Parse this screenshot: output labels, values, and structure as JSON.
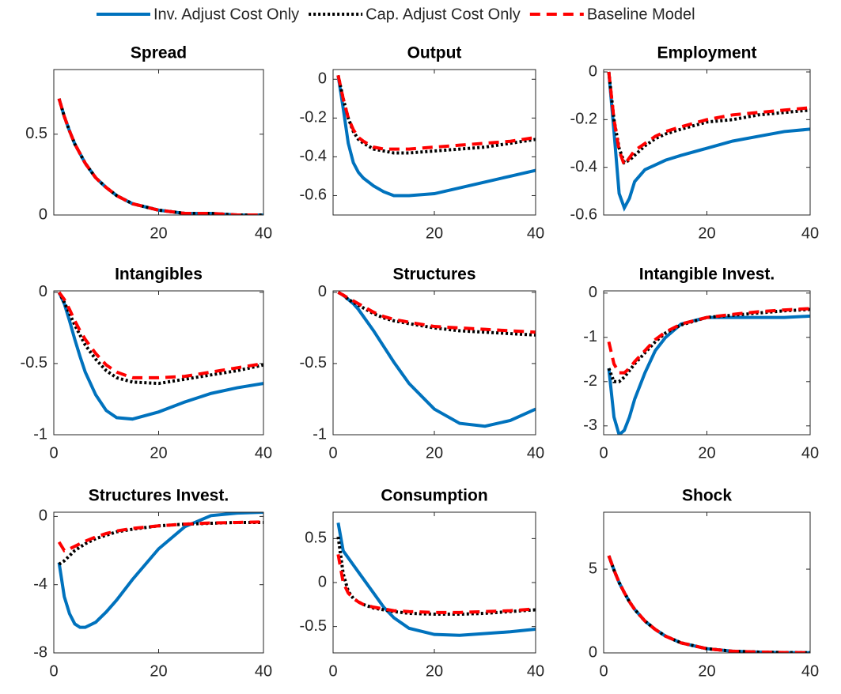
{
  "chart_data": [
    {
      "type": "line",
      "title": "Spread",
      "x": [
        1,
        2,
        3,
        4,
        5,
        6,
        8,
        10,
        12,
        15,
        20,
        25,
        30,
        35,
        40
      ],
      "xlim": [
        0,
        40
      ],
      "xticks": [
        20,
        40
      ],
      "ylim": [
        0,
        0.9
      ],
      "yticks": [
        0,
        0.5
      ],
      "series": [
        {
          "name": "Inv. Adjust Cost Only",
          "color": "#0072bd",
          "style": "solid",
          "values": [
            0.72,
            0.61,
            0.52,
            0.44,
            0.38,
            0.32,
            0.23,
            0.17,
            0.12,
            0.07,
            0.03,
            0.01,
            0.01,
            0,
            0
          ]
        },
        {
          "name": "Cap. Adjust Cost Only",
          "color": "#000000",
          "style": "dotted",
          "values": [
            0.72,
            0.61,
            0.52,
            0.44,
            0.38,
            0.32,
            0.23,
            0.17,
            0.12,
            0.07,
            0.03,
            0.01,
            0.01,
            0,
            0
          ]
        },
        {
          "name": "Baseline Model",
          "color": "#ff0000",
          "style": "dashed",
          "values": [
            0.72,
            0.61,
            0.52,
            0.44,
            0.38,
            0.32,
            0.23,
            0.17,
            0.12,
            0.07,
            0.03,
            0.01,
            0.01,
            0,
            0
          ]
        }
      ]
    },
    {
      "type": "line",
      "title": "Output",
      "x": [
        1,
        2,
        3,
        4,
        5,
        6,
        8,
        10,
        12,
        15,
        20,
        25,
        30,
        35,
        40
      ],
      "xlim": [
        0,
        40
      ],
      "xticks": [
        20,
        40
      ],
      "ylim": [
        -0.7,
        0.05
      ],
      "yticks": [
        -0.6,
        -0.4,
        -0.2,
        0
      ],
      "series": [
        {
          "name": "Inv. Adjust Cost Only",
          "color": "#0072bd",
          "style": "solid",
          "values": [
            0.02,
            -0.15,
            -0.33,
            -0.43,
            -0.48,
            -0.51,
            -0.55,
            -0.58,
            -0.6,
            -0.6,
            -0.59,
            -0.56,
            -0.53,
            -0.5,
            -0.47
          ]
        },
        {
          "name": "Cap. Adjust Cost Only",
          "color": "#000000",
          "style": "dotted",
          "values": [
            0.02,
            -0.1,
            -0.2,
            -0.27,
            -0.31,
            -0.33,
            -0.36,
            -0.37,
            -0.38,
            -0.38,
            -0.37,
            -0.36,
            -0.35,
            -0.33,
            -0.31
          ]
        },
        {
          "name": "Baseline Model",
          "color": "#ff0000",
          "style": "dashed",
          "values": [
            0.02,
            -0.1,
            -0.2,
            -0.26,
            -0.3,
            -0.32,
            -0.35,
            -0.36,
            -0.36,
            -0.36,
            -0.35,
            -0.34,
            -0.33,
            -0.32,
            -0.3
          ]
        }
      ]
    },
    {
      "type": "line",
      "title": "Employment",
      "x": [
        1,
        2,
        3,
        4,
        5,
        6,
        8,
        10,
        12,
        15,
        20,
        25,
        30,
        35,
        40
      ],
      "xlim": [
        0,
        40
      ],
      "xticks": [
        20,
        40
      ],
      "ylim": [
        -0.6,
        0.01
      ],
      "yticks": [
        -0.6,
        -0.4,
        -0.2,
        0
      ],
      "series": [
        {
          "name": "Inv. Adjust Cost Only",
          "color": "#0072bd",
          "style": "solid",
          "values": [
            0,
            -0.25,
            -0.51,
            -0.57,
            -0.53,
            -0.46,
            -0.41,
            -0.39,
            -0.37,
            -0.35,
            -0.32,
            -0.29,
            -0.27,
            -0.25,
            -0.24
          ]
        },
        {
          "name": "Cap. Adjust Cost Only",
          "color": "#000000",
          "style": "dotted",
          "values": [
            0,
            -0.2,
            -0.32,
            -0.38,
            -0.37,
            -0.35,
            -0.31,
            -0.28,
            -0.26,
            -0.24,
            -0.21,
            -0.2,
            -0.18,
            -0.17,
            -0.16
          ]
        },
        {
          "name": "Baseline Model",
          "color": "#ff0000",
          "style": "dashed",
          "values": [
            0,
            -0.2,
            -0.33,
            -0.39,
            -0.36,
            -0.33,
            -0.3,
            -0.27,
            -0.25,
            -0.23,
            -0.2,
            -0.18,
            -0.17,
            -0.16,
            -0.15
          ]
        }
      ]
    },
    {
      "type": "line",
      "title": "Intangibles",
      "x": [
        1,
        2,
        3,
        4,
        5,
        6,
        8,
        10,
        12,
        15,
        20,
        25,
        30,
        35,
        40
      ],
      "xlim": [
        0,
        40
      ],
      "xticks": [
        0,
        20,
        40
      ],
      "ylim": [
        -1,
        0.01
      ],
      "yticks": [
        -1,
        -0.5,
        0
      ],
      "series": [
        {
          "name": "Inv. Adjust Cost Only",
          "color": "#0072bd",
          "style": "solid",
          "values": [
            0,
            -0.08,
            -0.2,
            -0.33,
            -0.45,
            -0.56,
            -0.72,
            -0.83,
            -0.88,
            -0.89,
            -0.84,
            -0.77,
            -0.71,
            -0.67,
            -0.64
          ]
        },
        {
          "name": "Cap. Adjust Cost Only",
          "color": "#000000",
          "style": "dotted",
          "values": [
            0,
            -0.07,
            -0.15,
            -0.23,
            -0.3,
            -0.37,
            -0.47,
            -0.55,
            -0.6,
            -0.63,
            -0.64,
            -0.61,
            -0.58,
            -0.55,
            -0.51
          ]
        },
        {
          "name": "Baseline Model",
          "color": "#ff0000",
          "style": "dashed",
          "values": [
            0,
            -0.05,
            -0.12,
            -0.2,
            -0.27,
            -0.33,
            -0.43,
            -0.51,
            -0.56,
            -0.6,
            -0.6,
            -0.59,
            -0.56,
            -0.53,
            -0.5
          ]
        }
      ]
    },
    {
      "type": "line",
      "title": "Structures",
      "x": [
        1,
        2,
        3,
        4,
        5,
        6,
        8,
        10,
        12,
        15,
        20,
        25,
        30,
        35,
        40
      ],
      "xlim": [
        0,
        40
      ],
      "xticks": [
        0,
        20,
        40
      ],
      "ylim": [
        -1,
        0.01
      ],
      "yticks": [
        -1,
        -0.5,
        0
      ],
      "series": [
        {
          "name": "Inv. Adjust Cost Only",
          "color": "#0072bd",
          "style": "solid",
          "values": [
            0,
            -0.02,
            -0.05,
            -0.08,
            -0.12,
            -0.17,
            -0.27,
            -0.38,
            -0.49,
            -0.64,
            -0.82,
            -0.92,
            -0.94,
            -0.9,
            -0.82
          ]
        },
        {
          "name": "Cap. Adjust Cost Only",
          "color": "#000000",
          "style": "dotted",
          "values": [
            0,
            -0.02,
            -0.05,
            -0.07,
            -0.09,
            -0.11,
            -0.15,
            -0.18,
            -0.2,
            -0.22,
            -0.25,
            -0.27,
            -0.28,
            -0.29,
            -0.3
          ]
        },
        {
          "name": "Baseline Model",
          "color": "#ff0000",
          "style": "dashed",
          "values": [
            0,
            -0.02,
            -0.04,
            -0.06,
            -0.08,
            -0.1,
            -0.14,
            -0.17,
            -0.19,
            -0.21,
            -0.24,
            -0.25,
            -0.26,
            -0.27,
            -0.28
          ]
        }
      ]
    },
    {
      "type": "line",
      "title": "Intangible Invest.",
      "x": [
        1,
        2,
        3,
        4,
        5,
        6,
        8,
        10,
        12,
        15,
        20,
        25,
        30,
        35,
        40
      ],
      "xlim": [
        0,
        40
      ],
      "xticks": [
        0,
        20,
        40
      ],
      "ylim": [
        -3.2,
        0.05
      ],
      "yticks": [
        -3,
        -2,
        -1,
        0
      ],
      "series": [
        {
          "name": "Inv. Adjust Cost Only",
          "color": "#0072bd",
          "style": "solid",
          "values": [
            -1.7,
            -2.8,
            -3.2,
            -3.1,
            -2.8,
            -2.4,
            -1.8,
            -1.3,
            -1,
            -0.7,
            -0.55,
            -0.55,
            -0.55,
            -0.55,
            -0.52
          ]
        },
        {
          "name": "Cap. Adjust Cost Only",
          "color": "#000000",
          "style": "dotted",
          "values": [
            -1.7,
            -2,
            -2,
            -1.9,
            -1.75,
            -1.6,
            -1.35,
            -1.1,
            -0.9,
            -0.72,
            -0.55,
            -0.5,
            -0.45,
            -0.4,
            -0.37
          ]
        },
        {
          "name": "Baseline Model",
          "color": "#ff0000",
          "style": "dashed",
          "values": [
            -1.1,
            -1.6,
            -1.8,
            -1.8,
            -1.7,
            -1.55,
            -1.3,
            -1.05,
            -0.88,
            -0.7,
            -0.55,
            -0.48,
            -0.42,
            -0.38,
            -0.35
          ]
        }
      ]
    },
    {
      "type": "line",
      "title": "Structures Invest.",
      "x": [
        1,
        2,
        3,
        4,
        5,
        6,
        8,
        10,
        12,
        15,
        20,
        25,
        30,
        35,
        40
      ],
      "xlim": [
        0,
        40
      ],
      "xticks": [
        0,
        20,
        40
      ],
      "ylim": [
        -8,
        0.25
      ],
      "yticks": [
        -8,
        -4,
        0
      ],
      "series": [
        {
          "name": "Inv. Adjust Cost Only",
          "color": "#0072bd",
          "style": "solid",
          "values": [
            -2.7,
            -4.7,
            -5.7,
            -6.3,
            -6.5,
            -6.5,
            -6.2,
            -5.6,
            -4.9,
            -3.7,
            -1.9,
            -0.6,
            0.05,
            0.2,
            0.25
          ]
        },
        {
          "name": "Cap. Adjust Cost Only",
          "color": "#000000",
          "style": "dotted",
          "values": [
            -2.8,
            -2.6,
            -2.3,
            -2,
            -1.8,
            -1.6,
            -1.3,
            -1.1,
            -0.9,
            -0.75,
            -0.55,
            -0.45,
            -0.4,
            -0.35,
            -0.35
          ]
        },
        {
          "name": "Baseline Model",
          "color": "#ff0000",
          "style": "dashed",
          "values": [
            -1.5,
            -2,
            -1.9,
            -1.75,
            -1.6,
            -1.45,
            -1.2,
            -1,
            -0.85,
            -0.7,
            -0.55,
            -0.45,
            -0.38,
            -0.35,
            -0.32
          ]
        }
      ]
    },
    {
      "type": "line",
      "title": "Consumption",
      "x": [
        1,
        2,
        3,
        4,
        5,
        6,
        8,
        10,
        12,
        15,
        20,
        25,
        30,
        35,
        40
      ],
      "xlim": [
        0,
        40
      ],
      "xticks": [
        0,
        20,
        40
      ],
      "ylim": [
        -0.8,
        0.8
      ],
      "yticks": [
        -0.5,
        0,
        0.5
      ],
      "series": [
        {
          "name": "Inv. Adjust Cost Only",
          "color": "#0072bd",
          "style": "solid",
          "values": [
            0.68,
            0.36,
            0.28,
            0.2,
            0.12,
            0.04,
            -0.12,
            -0.28,
            -0.4,
            -0.52,
            -0.59,
            -0.6,
            -0.58,
            -0.56,
            -0.53
          ]
        },
        {
          "name": "Cap. Adjust Cost Only",
          "color": "#000000",
          "style": "dotted",
          "values": [
            0.52,
            0.1,
            -0.1,
            -0.18,
            -0.22,
            -0.25,
            -0.29,
            -0.31,
            -0.33,
            -0.35,
            -0.36,
            -0.36,
            -0.35,
            -0.33,
            -0.31
          ]
        },
        {
          "name": "Baseline Model",
          "color": "#ff0000",
          "style": "dashed",
          "values": [
            0.32,
            0,
            -0.12,
            -0.18,
            -0.22,
            -0.25,
            -0.28,
            -0.3,
            -0.32,
            -0.33,
            -0.34,
            -0.34,
            -0.33,
            -0.32,
            -0.3
          ]
        }
      ]
    },
    {
      "type": "line",
      "title": "Shock",
      "x": [
        1,
        2,
        3,
        4,
        5,
        6,
        8,
        10,
        12,
        15,
        20,
        25,
        30,
        35,
        40
      ],
      "xlim": [
        0,
        40
      ],
      "xticks": [
        0,
        20,
        40
      ],
      "ylim": [
        0,
        8.4
      ],
      "yticks": [
        0,
        5
      ],
      "series": [
        {
          "name": "Inv. Adjust Cost Only",
          "color": "#0072bd",
          "style": "solid",
          "values": [
            5.8,
            4.95,
            4.2,
            3.6,
            3.05,
            2.6,
            1.9,
            1.4,
            1,
            0.6,
            0.25,
            0.1,
            0.05,
            0.02,
            0.01
          ]
        },
        {
          "name": "Cap. Adjust Cost Only",
          "color": "#000000",
          "style": "dotted",
          "values": [
            5.8,
            4.95,
            4.2,
            3.6,
            3.05,
            2.6,
            1.9,
            1.4,
            1,
            0.6,
            0.25,
            0.1,
            0.05,
            0.02,
            0.01
          ]
        },
        {
          "name": "Baseline Model",
          "color": "#ff0000",
          "style": "dashed",
          "values": [
            5.8,
            4.95,
            4.2,
            3.6,
            3.05,
            2.6,
            1.9,
            1.4,
            1,
            0.6,
            0.25,
            0.1,
            0.05,
            0.02,
            0.01
          ]
        }
      ]
    }
  ]
}
